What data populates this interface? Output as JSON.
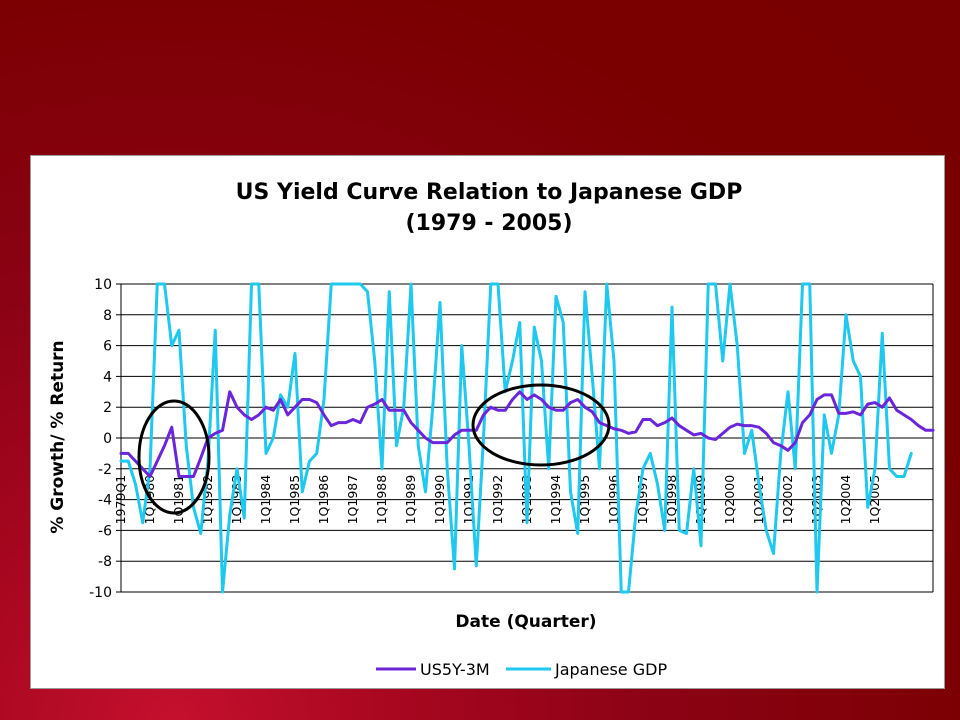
{
  "chart_data": {
    "type": "line",
    "title": "US Yield Curve Relation to Japanese GDP",
    "subtitle": "(1979 - 2005)",
    "xlabel": "Date (Quarter)",
    "ylabel": "% Growth/ % Return",
    "ylim": [
      -10,
      10
    ],
    "yticks": [
      "10",
      "8",
      "6",
      "4",
      "2",
      "0",
      "-2",
      "-4",
      "-6",
      "-8",
      "-10"
    ],
    "xtick_labels": [
      "1979Q1",
      "1Q1980",
      "1Q1981",
      "1Q1982",
      "1Q1983",
      "1Q1984",
      "1Q1985",
      "1Q1986",
      "1Q1987",
      "1Q1988",
      "1Q1989",
      "1Q1990",
      "1Q1991",
      "1Q1992",
      "1Q1993",
      "1Q1994",
      "1Q1995",
      "1Q1996",
      "1Q1997",
      "1Q1998",
      "1Q1999",
      "1Q2000",
      "1Q2001",
      "1Q2002",
      "1Q2003",
      "1Q2004",
      "1Q2005"
    ],
    "grid": "horizontal",
    "legend_position": "bottom",
    "quarters_per_year": 4,
    "series": [
      {
        "name": "US5Y-3M",
        "color": "#6a26d8",
        "values": [
          -1.0,
          -1.0,
          -1.5,
          -2.0,
          -2.5,
          -1.5,
          -0.5,
          0.7,
          -2.5,
          -2.5,
          -2.5,
          -1.3,
          0.0,
          0.3,
          0.5,
          3.0,
          2.0,
          1.5,
          1.2,
          1.5,
          2.0,
          1.8,
          2.5,
          1.5,
          2.0,
          2.5,
          2.5,
          2.3,
          1.5,
          0.8,
          1.0,
          1.0,
          1.2,
          1.0,
          2.0,
          2.2,
          2.5,
          1.8,
          1.8,
          1.8,
          1.0,
          0.5,
          0.0,
          -0.3,
          -0.3,
          -0.3,
          0.2,
          0.5,
          0.5,
          0.5,
          1.5,
          2.0,
          1.8,
          1.8,
          2.5,
          3.0,
          2.5,
          2.8,
          2.5,
          2.0,
          1.8,
          1.8,
          2.3,
          2.5,
          2.0,
          1.7,
          1.0,
          0.8,
          0.6,
          0.5,
          0.3,
          0.4,
          1.2,
          1.2,
          0.8,
          1.0,
          1.3,
          0.8,
          0.5,
          0.2,
          0.3,
          0.0,
          -0.1,
          0.3,
          0.7,
          0.9,
          0.8,
          0.8,
          0.7,
          0.3,
          -0.3,
          -0.5,
          -0.8,
          -0.3,
          1.0,
          1.5,
          2.5,
          2.8,
          2.8,
          1.6,
          1.6,
          1.7,
          1.5,
          2.2,
          2.3,
          2.0,
          2.6,
          1.8,
          1.5,
          1.2,
          0.8,
          0.5,
          0.5
        ]
      },
      {
        "name": "Japanese GDP",
        "color": "#1ec8ee",
        "values": [
          -1.5,
          -1.5,
          -3.0,
          -5.5,
          -2.0,
          10.0,
          10.0,
          6.0,
          7.0,
          -0.5,
          -4.5,
          -6.2,
          -1.5,
          7.0,
          -10.0,
          -5.0,
          -2.0,
          -5.2,
          10.0,
          10.0,
          -1.0,
          0.0,
          2.8,
          2.0,
          5.5,
          -3.5,
          -1.5,
          -1.0,
          2.5,
          10.0,
          10.0,
          10.0,
          10.0,
          10.0,
          9.5,
          5.0,
          -2.0,
          9.5,
          -0.5,
          2.0,
          10.0,
          -0.5,
          -3.5,
          2.0,
          8.8,
          -2.0,
          -8.5,
          6.0,
          -0.5,
          -8.3,
          0.0,
          10.0,
          10.0,
          3.0,
          5.0,
          7.5,
          -5.5,
          7.2,
          5.0,
          -2.0,
          9.2,
          7.5,
          -3.5,
          -6.2,
          9.5,
          4.0,
          -2.0,
          10.0,
          5.0,
          -10.5,
          -10.5,
          -5.0,
          -2.0,
          -1.0,
          -3.0,
          -6.0,
          8.5,
          -6.0,
          -6.2,
          -2.0,
          -7.0,
          10.0,
          10.0,
          5.0,
          10.0,
          6.0,
          -1.0,
          0.5,
          -3.0,
          -6.0,
          -7.5,
          -1.0,
          3.0,
          -2.0,
          10.0,
          10.0,
          -10.2,
          1.5,
          -1.0,
          1.5,
          8.0,
          5.0,
          4.0,
          -4.5,
          -2.0,
          6.8,
          -2.0,
          -2.5,
          -2.5,
          -1.0
        ]
      }
    ]
  }
}
